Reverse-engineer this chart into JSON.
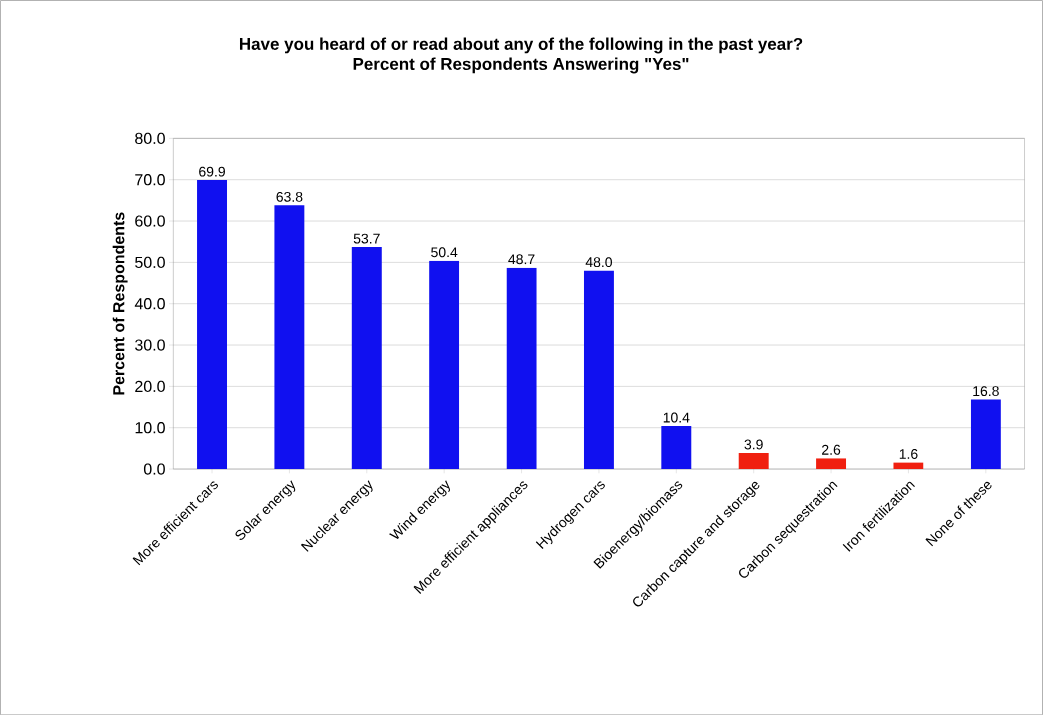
{
  "chart_data": {
    "type": "bar",
    "title": "Have you heard of or read about any of the following in the past year?",
    "subtitle": "Percent of Respondents Answering \"Yes\"",
    "ylabel": "Percent of Respondents",
    "categories": [
      "More efficient cars",
      "Solar energy",
      "Nuclear energy",
      "Wind energy",
      "More efficient appliances",
      "Hydrogen cars",
      "Bioenergy/biomass",
      "Carbon capture and storage",
      "Carbon sequestration",
      "Iron fertilization",
      "None of these"
    ],
    "values": [
      69.9,
      63.8,
      53.7,
      50.4,
      48.7,
      48.0,
      10.4,
      3.9,
      2.6,
      1.6,
      16.8
    ],
    "colors": [
      "#1010f0",
      "#1010f0",
      "#1010f0",
      "#1010f0",
      "#1010f0",
      "#1010f0",
      "#1010f0",
      "#f02010",
      "#f02010",
      "#f02010",
      "#1010f0"
    ],
    "ylim": [
      0,
      80
    ],
    "yticks": [
      {
        "value": 0,
        "label": "0.0"
      },
      {
        "value": 10,
        "label": "10.0"
      },
      {
        "value": 20,
        "label": "20.0"
      },
      {
        "value": 30,
        "label": "30.0"
      },
      {
        "value": 40,
        "label": "40.0"
      },
      {
        "value": 50,
        "label": "50.0"
      },
      {
        "value": 60,
        "label": "60.0"
      },
      {
        "value": 70,
        "label": "70.0"
      },
      {
        "value": 80,
        "label": "80.0"
      }
    ],
    "value_labels": [
      "69.9",
      "63.8",
      "53.7",
      "50.4",
      "48.7",
      "48.0",
      "10.4",
      "3.9",
      "2.6",
      "1.6",
      "16.8"
    ],
    "grid": "y"
  }
}
